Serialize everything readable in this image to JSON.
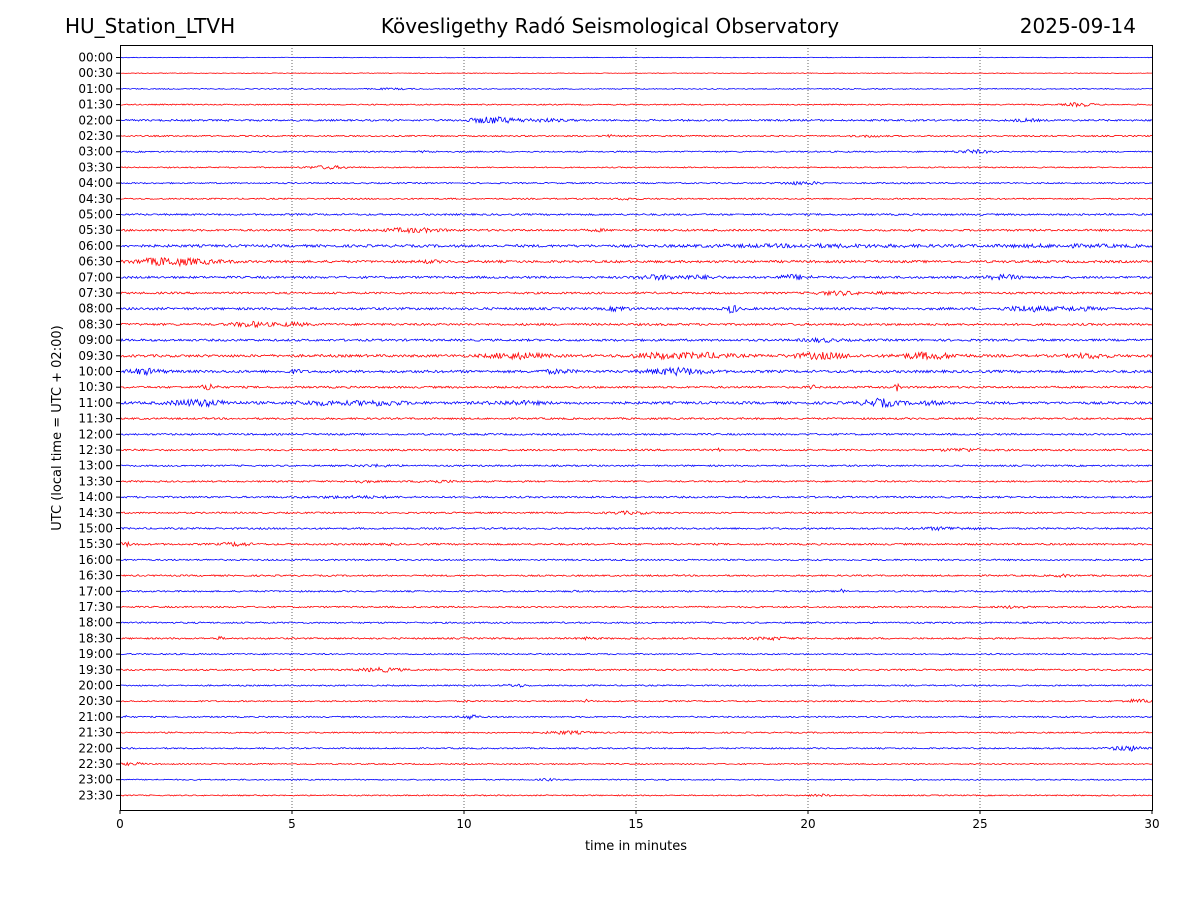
{
  "header": {
    "station": "HU_Station_LTVH",
    "title": "Kövesligethy Radó Seismological Observatory",
    "date": "2025-09-14"
  },
  "chart_data": {
    "type": "line",
    "title": "Kövesligethy Radó Seismological Observatory",
    "xlabel": "time in minutes",
    "ylabel": "UTC (local time = UTC + 02:00)",
    "xlim": [
      0,
      30
    ],
    "x_ticks": [
      "0",
      "5",
      "10",
      "15",
      "20",
      "25",
      "30"
    ],
    "grid": {
      "vertical_dotted": [
        5,
        10,
        15,
        20,
        25
      ]
    },
    "colors": {
      "even_rows": "#0000ff",
      "odd_rows": "#ff0000"
    },
    "rows": [
      "00:00",
      "00:30",
      "01:00",
      "01:30",
      "02:00",
      "02:30",
      "03:00",
      "03:30",
      "04:00",
      "04:30",
      "05:00",
      "05:30",
      "06:00",
      "06:30",
      "07:00",
      "07:30",
      "08:00",
      "08:30",
      "09:00",
      "09:30",
      "10:00",
      "10:30",
      "11:00",
      "11:30",
      "12:00",
      "12:30",
      "13:00",
      "13:30",
      "14:00",
      "14:30",
      "15:00",
      "15:30",
      "16:00",
      "16:30",
      "17:00",
      "17:30",
      "18:00",
      "18:30",
      "19:00",
      "19:30",
      "20:00",
      "20:30",
      "21:00",
      "21:30",
      "22:00",
      "22:30",
      "23:00",
      "23:30"
    ],
    "noise_level": [
      0.3,
      0.3,
      0.5,
      0.6,
      0.9,
      0.7,
      0.7,
      0.6,
      0.7,
      0.7,
      0.9,
      1.0,
      1.3,
      1.2,
      1.1,
      1.0,
      1.2,
      1.1,
      1.1,
      1.3,
      1.3,
      1.0,
      1.3,
      0.9,
      0.9,
      0.9,
      0.8,
      0.8,
      0.9,
      0.8,
      0.9,
      0.9,
      0.8,
      0.8,
      0.8,
      0.8,
      0.8,
      0.8,
      0.7,
      0.8,
      0.7,
      0.7,
      0.7,
      0.7,
      0.7,
      0.6,
      0.6,
      0.6
    ],
    "bursts": [
      [
        [
          0.55,
          0.0,
          0.1
        ]
      ],
      [],
      [
        [
          7.9,
          0.6,
          0.5
        ]
      ],
      [
        [
          27.9,
          0.4,
          1.6
        ]
      ],
      [
        [
          10.8,
          0.6,
          3.0
        ],
        [
          12.2,
          0.8,
          1.2
        ],
        [
          26.3,
          0.4,
          1.0
        ]
      ],
      [
        [
          14.2,
          0.15,
          0.9
        ],
        [
          21.8,
          0.4,
          0.8
        ]
      ],
      [
        [
          24.8,
          0.5,
          1.5
        ],
        [
          8.9,
          0.2,
          0.7
        ]
      ],
      [
        [
          6.0,
          0.6,
          1.4
        ]
      ],
      [
        [
          19.8,
          0.6,
          1.3
        ]
      ],
      [
        [
          14.7,
          0.3,
          0.8
        ]
      ],
      [],
      [
        [
          8.5,
          0.8,
          1.8
        ],
        [
          13.9,
          0.2,
          0.9
        ]
      ],
      [
        [
          20.2,
          3.0,
          0.9
        ],
        [
          27.5,
          2.0,
          0.8
        ]
      ],
      [
        [
          1.3,
          0.8,
          3.2
        ],
        [
          2.4,
          0.8,
          1.3
        ],
        [
          9.0,
          0.3,
          1.0
        ]
      ],
      [
        [
          15.6,
          0.6,
          1.9
        ],
        [
          16.8,
          0.6,
          1.4
        ],
        [
          19.6,
          0.5,
          2.0
        ],
        [
          25.7,
          0.5,
          2.0
        ]
      ],
      [
        [
          20.9,
          0.6,
          1.6
        ],
        [
          22.2,
          0.2,
          0.9
        ]
      ],
      [
        [
          14.5,
          0.3,
          1.8
        ],
        [
          17.8,
          0.15,
          4.0
        ],
        [
          26.4,
          0.6,
          2.4
        ],
        [
          27.8,
          0.6,
          1.5
        ]
      ],
      [
        [
          3.8,
          0.5,
          2.2
        ],
        [
          5.0,
          0.5,
          1.3
        ]
      ],
      [
        [
          20.4,
          0.5,
          1.4
        ]
      ],
      [
        [
          11.5,
          0.8,
          2.5
        ],
        [
          15.6,
          0.8,
          2.2
        ],
        [
          17.0,
          0.8,
          2.2
        ],
        [
          20.4,
          0.8,
          2.6
        ],
        [
          23.5,
          0.8,
          2.8
        ],
        [
          28.2,
          0.5,
          2.0
        ]
      ],
      [
        [
          0.7,
          0.5,
          2.4
        ],
        [
          16.2,
          0.8,
          3.0
        ],
        [
          12.7,
          0.5,
          1.4
        ],
        [
          5.1,
          0.2,
          1.4
        ]
      ],
      [
        [
          2.6,
          0.2,
          3.2
        ],
        [
          20.1,
          0.08,
          3.2
        ],
        [
          22.6,
          0.08,
          3.2
        ]
      ],
      [
        [
          2.3,
          0.8,
          2.8
        ],
        [
          5.8,
          0.8,
          1.5
        ],
        [
          7.5,
          0.8,
          2.0
        ],
        [
          11.5,
          0.8,
          1.4
        ],
        [
          22.1,
          0.5,
          3.4
        ],
        [
          23.5,
          0.5,
          1.3
        ]
      ],
      [],
      [],
      [
        [
          24.5,
          0.6,
          1.2
        ],
        [
          17.4,
          0.1,
          1.0
        ]
      ],
      [
        [
          7.5,
          0.6,
          0.8
        ]
      ],
      [
        [
          9.2,
          0.5,
          1.1
        ],
        [
          7.0,
          0.4,
          0.9
        ]
      ],
      [
        [
          6.8,
          1.2,
          0.8
        ]
      ],
      [
        [
          14.8,
          0.6,
          1.1
        ]
      ],
      [
        [
          24.0,
          0.8,
          1.1
        ]
      ],
      [
        [
          0.2,
          0.2,
          1.6
        ],
        [
          3.4,
          0.4,
          1.6
        ],
        [
          7.8,
          0.1,
          1.0
        ]
      ],
      [],
      [
        [
          27.4,
          0.3,
          1.0
        ]
      ],
      [
        [
          13.2,
          0.05,
          1.6
        ],
        [
          21.0,
          0.05,
          3.0
        ]
      ],
      [
        [
          26.0,
          0.4,
          0.9
        ]
      ],
      [],
      [
        [
          2.9,
          0.1,
          1.3
        ],
        [
          18.9,
          0.6,
          1.1
        ],
        [
          13.6,
          0.3,
          0.8
        ]
      ],
      [],
      [
        [
          7.6,
          0.6,
          1.7
        ]
      ],
      [
        [
          11.5,
          0.3,
          1.2
        ]
      ],
      [
        [
          13.6,
          0.08,
          1.8
        ],
        [
          29.6,
          0.4,
          1.6
        ],
        [
          10.1,
          0.05,
          1.0
        ]
      ],
      [
        [
          10.2,
          0.2,
          2.5
        ],
        [
          0.1,
          0.1,
          1.6
        ]
      ],
      [
        [
          13.0,
          0.6,
          1.3
        ]
      ],
      [
        [
          29.3,
          0.5,
          2.3
        ]
      ],
      [
        [
          0.4,
          0.3,
          1.3
        ]
      ],
      [
        [
          12.4,
          0.2,
          1.0
        ]
      ],
      [
        [
          20.4,
          0.4,
          0.9
        ]
      ]
    ]
  }
}
